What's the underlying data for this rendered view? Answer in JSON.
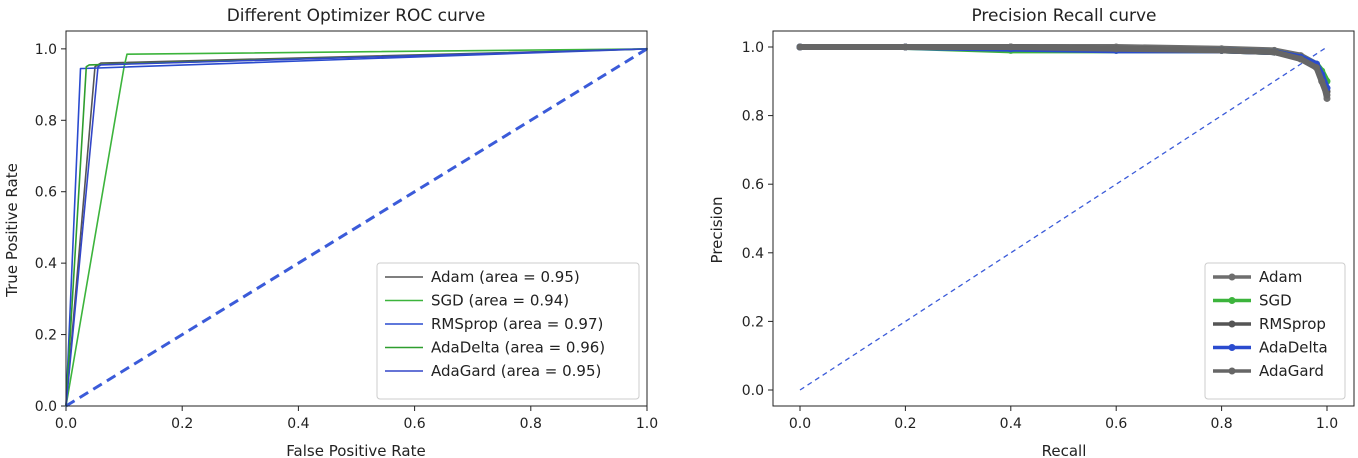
{
  "chart_data": [
    {
      "type": "line",
      "title": "Different Optimizer ROC curve",
      "xlabel": "False Positive Rate",
      "ylabel": "True Positive Rate",
      "xlim": [
        0,
        1
      ],
      "ylim": [
        0,
        1.05
      ],
      "xticks": [
        "0.0",
        "0.2",
        "0.4",
        "0.6",
        "0.8",
        "1.0"
      ],
      "yticks": [
        "0.0",
        "0.2",
        "0.4",
        "0.6",
        "0.8",
        "1.0"
      ],
      "legend_position": "lower-right",
      "grid": false,
      "series": [
        {
          "name": "Adam (area = 0.95)",
          "color": "#555555",
          "x": [
            0,
            0.05,
            0.06,
            1.0
          ],
          "y": [
            0,
            0.95,
            0.96,
            1.0
          ]
        },
        {
          "name": "SGD (area = 0.94)",
          "color": "#3cb43c",
          "x": [
            0,
            0.1,
            0.105,
            1.0
          ],
          "y": [
            0,
            0.95,
            0.985,
            1.0
          ]
        },
        {
          "name": "RMSprop (area = 0.97)",
          "color": "#2a4bcf",
          "x": [
            0,
            0.025,
            0.03,
            1.0
          ],
          "y": [
            0,
            0.945,
            0.945,
            1.0
          ]
        },
        {
          "name": "AdaDelta (area = 0.96)",
          "color": "#2e9e2e",
          "x": [
            0,
            0.035,
            0.04,
            1.0
          ],
          "y": [
            0,
            0.95,
            0.955,
            1.0
          ]
        },
        {
          "name": "AdaGard (area = 0.95)",
          "color": "#3346c8",
          "x": [
            0,
            0.055,
            0.06,
            1.0
          ],
          "y": [
            0,
            0.95,
            0.955,
            1.0
          ]
        }
      ],
      "reference_line": {
        "x": [
          0,
          1
        ],
        "y": [
          0,
          1
        ],
        "color": "#3b5bd9",
        "style": "dashed"
      }
    },
    {
      "type": "line",
      "title": "Precision Recall curve",
      "xlabel": "Recall",
      "ylabel": "Precision",
      "xlim": [
        0,
        1
      ],
      "ylim": [
        0,
        1.0
      ],
      "xticks": [
        "0.0",
        "0.2",
        "0.4",
        "0.6",
        "0.8",
        "1.0"
      ],
      "yticks": [
        "0.0",
        "0.2",
        "0.4",
        "0.6",
        "0.8",
        "1.0"
      ],
      "legend_position": "lower-right",
      "grid": false,
      "series": [
        {
          "name": "Adam",
          "color": "#6e6e6e",
          "x": [
            0,
            0.2,
            0.4,
            0.6,
            0.8,
            0.9,
            0.95,
            0.98,
            0.99,
            1.0
          ],
          "y": [
            1.0,
            1.0,
            1.0,
            1.0,
            0.995,
            0.99,
            0.975,
            0.95,
            0.92,
            0.85
          ]
        },
        {
          "name": "SGD",
          "color": "#3cb43c",
          "x": [
            0,
            0.2,
            0.4,
            0.6,
            0.8,
            0.9,
            0.95,
            0.98,
            0.99,
            1.0
          ],
          "y": [
            1.0,
            1.0,
            0.99,
            0.99,
            0.99,
            0.985,
            0.97,
            0.95,
            0.93,
            0.9
          ]
        },
        {
          "name": "RMSprop",
          "color": "#555555",
          "x": [
            0,
            0.2,
            0.4,
            0.6,
            0.8,
            0.9,
            0.95,
            0.98,
            0.99,
            1.0
          ],
          "y": [
            1.0,
            1.0,
            1.0,
            0.995,
            0.99,
            0.985,
            0.97,
            0.94,
            0.91,
            0.87
          ]
        },
        {
          "name": "AdaDelta",
          "color": "#2a4bcf",
          "x": [
            0,
            0.2,
            0.4,
            0.6,
            0.8,
            0.9,
            0.95,
            0.98,
            0.99,
            1.0
          ],
          "y": [
            1.0,
            1.0,
            0.995,
            0.99,
            0.99,
            0.985,
            0.97,
            0.95,
            0.92,
            0.88
          ]
        },
        {
          "name": "AdaGard",
          "color": "#666666",
          "x": [
            0,
            0.2,
            0.4,
            0.6,
            0.8,
            0.9,
            0.95,
            0.98,
            0.99,
            1.0
          ],
          "y": [
            1.0,
            1.0,
            1.0,
            0.995,
            0.99,
            0.985,
            0.965,
            0.94,
            0.9,
            0.86
          ]
        }
      ],
      "reference_line": {
        "x": [
          0,
          1
        ],
        "y": [
          0,
          1
        ],
        "color": "#3b5bd9",
        "style": "dashed"
      }
    }
  ]
}
